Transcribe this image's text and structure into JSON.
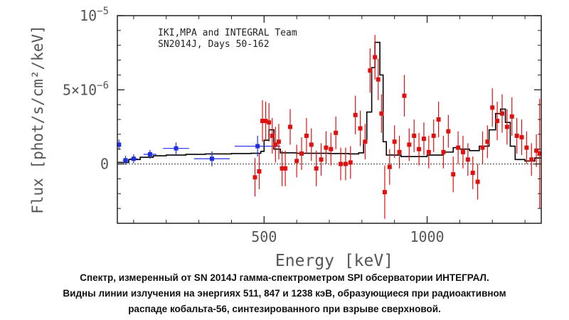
{
  "chart_data": {
    "type": "scatter",
    "title_lines": [
      "IKI,MPA and INTEGRAL Team",
      "SN2014J, Days 50-162"
    ],
    "xlabel": "Energy [keV]",
    "ylabel": "Flux [phot/s/cm²/keV]",
    "xlim": [
      50,
      1350
    ],
    "ylim": [
      -4.0,
      10.0
    ],
    "y_unit_exponent": -6,
    "x_ticks": [
      500,
      1000
    ],
    "x_tick_labels": [
      "500",
      "1000"
    ],
    "y_ticks": [
      0,
      5,
      10
    ],
    "y_tick_labels": [
      "0",
      "5×10",
      "10"
    ],
    "y_tick_superscripts": [
      "",
      "−6",
      "−5"
    ],
    "zero_line": true,
    "model": {
      "name": "model spectrum",
      "color": "#000000",
      "steps": [
        [
          50,
          0.1
        ],
        [
          85,
          0.3
        ],
        [
          120,
          0.45
        ],
        [
          160,
          0.55
        ],
        [
          200,
          0.6
        ],
        [
          260,
          0.65
        ],
        [
          320,
          0.68
        ],
        [
          400,
          0.7
        ],
        [
          460,
          0.72
        ],
        [
          490,
          0.85
        ],
        [
          500,
          1.6
        ],
        [
          515,
          2.3
        ],
        [
          530,
          1.0
        ],
        [
          550,
          0.75
        ],
        [
          600,
          0.72
        ],
        [
          700,
          0.7
        ],
        [
          760,
          0.68
        ],
        [
          790,
          0.75
        ],
        [
          805,
          1.5
        ],
        [
          815,
          3.5
        ],
        [
          830,
          6.5
        ],
        [
          840,
          8.2
        ],
        [
          855,
          6.0
        ],
        [
          865,
          1.5
        ],
        [
          875,
          0.6
        ],
        [
          920,
          0.5
        ],
        [
          1000,
          0.6
        ],
        [
          1050,
          0.8
        ],
        [
          1080,
          1.1
        ],
        [
          1100,
          1.0
        ],
        [
          1130,
          0.9
        ],
        [
          1160,
          1.2
        ],
        [
          1190,
          2.3
        ],
        [
          1210,
          3.4
        ],
        [
          1225,
          3.7
        ],
        [
          1240,
          2.8
        ],
        [
          1255,
          1.2
        ],
        [
          1270,
          0.3
        ],
        [
          1300,
          0.2
        ],
        [
          1330,
          0.4
        ],
        [
          1350,
          0.4
        ]
      ]
    },
    "series": [
      {
        "name": "low-energy data (blue)",
        "color": "#1f2ee0",
        "points": [
          {
            "x": 55,
            "y": 1.3,
            "xerr": 4,
            "yerr": 0.35
          },
          {
            "x": 75,
            "y": 0.25,
            "xerr": 8,
            "yerr": 0.3
          },
          {
            "x": 100,
            "y": 0.35,
            "xerr": 12,
            "yerr": 0.3
          },
          {
            "x": 150,
            "y": 0.65,
            "xerr": 20,
            "yerr": 0.3
          },
          {
            "x": 230,
            "y": 1.05,
            "xerr": 40,
            "yerr": 0.4
          },
          {
            "x": 340,
            "y": 0.35,
            "xerr": 55,
            "yerr": 0.5
          },
          {
            "x": 480,
            "y": 1.2,
            "xerr": 70,
            "yerr": 0.7
          }
        ]
      },
      {
        "name": "high-energy data (red)",
        "color": "#e01010",
        "points": [
          {
            "x": 472,
            "y": -0.9,
            "xerr": 3,
            "yerr": 1.3
          },
          {
            "x": 485,
            "y": -0.5,
            "xerr": 3,
            "yerr": 1.2
          },
          {
            "x": 495,
            "y": 2.9,
            "xerr": 3,
            "yerr": 1.4
          },
          {
            "x": 505,
            "y": 2.9,
            "xerr": 3,
            "yerr": 1.3
          },
          {
            "x": 515,
            "y": 2.8,
            "xerr": 3,
            "yerr": 1.3
          },
          {
            "x": 525,
            "y": 1.9,
            "xerr": 3,
            "yerr": 1.2
          },
          {
            "x": 535,
            "y": 1.3,
            "xerr": 3,
            "yerr": 1.2
          },
          {
            "x": 545,
            "y": 1.5,
            "xerr": 3,
            "yerr": 1.2
          },
          {
            "x": 555,
            "y": -0.3,
            "xerr": 3,
            "yerr": 1.2
          },
          {
            "x": 565,
            "y": -0.3,
            "xerr": 3,
            "yerr": 1.2
          },
          {
            "x": 580,
            "y": 2.5,
            "xerr": 3,
            "yerr": 1.2
          },
          {
            "x": 600,
            "y": 0.2,
            "xerr": 3,
            "yerr": 1.1
          },
          {
            "x": 615,
            "y": 0.7,
            "xerr": 3,
            "yerr": 1.1
          },
          {
            "x": 630,
            "y": 1.9,
            "xerr": 3,
            "yerr": 1.2
          },
          {
            "x": 645,
            "y": 1.3,
            "xerr": 3,
            "yerr": 1.1
          },
          {
            "x": 660,
            "y": -0.3,
            "xerr": 3,
            "yerr": 1.2
          },
          {
            "x": 675,
            "y": 0.3,
            "xerr": 3,
            "yerr": 1.1
          },
          {
            "x": 690,
            "y": 1.1,
            "xerr": 3,
            "yerr": 1.1
          },
          {
            "x": 705,
            "y": 1.0,
            "xerr": 3,
            "yerr": 1.1
          },
          {
            "x": 720,
            "y": 2.1,
            "xerr": 3,
            "yerr": 1.1
          },
          {
            "x": 735,
            "y": 0.0,
            "xerr": 3,
            "yerr": 1.1
          },
          {
            "x": 750,
            "y": 0.0,
            "xerr": 3,
            "yerr": 1.1
          },
          {
            "x": 765,
            "y": 0.1,
            "xerr": 3,
            "yerr": 1.1
          },
          {
            "x": 780,
            "y": 3.3,
            "xerr": 3,
            "yerr": 1.3
          },
          {
            "x": 795,
            "y": 2.4,
            "xerr": 3,
            "yerr": 1.2
          },
          {
            "x": 810,
            "y": 1.5,
            "xerr": 3,
            "yerr": 1.2
          },
          {
            "x": 825,
            "y": 6.3,
            "xerr": 3,
            "yerr": 1.5
          },
          {
            "x": 840,
            "y": 7.2,
            "xerr": 3,
            "yerr": 1.5
          },
          {
            "x": 850,
            "y": 5.7,
            "xerr": 3,
            "yerr": 1.4
          },
          {
            "x": 860,
            "y": 3.4,
            "xerr": 3,
            "yerr": 1.3
          },
          {
            "x": 870,
            "y": -1.9,
            "xerr": 3,
            "yerr": 1.8
          },
          {
            "x": 885,
            "y": -0.2,
            "xerr": 3,
            "yerr": 1.2
          },
          {
            "x": 900,
            "y": 1.5,
            "xerr": 3,
            "yerr": 1.1
          },
          {
            "x": 915,
            "y": 0.8,
            "xerr": 3,
            "yerr": 1.1
          },
          {
            "x": 930,
            "y": 4.6,
            "xerr": 3,
            "yerr": 1.4
          },
          {
            "x": 945,
            "y": 1.3,
            "xerr": 3,
            "yerr": 1.1
          },
          {
            "x": 960,
            "y": 1.9,
            "xerr": 3,
            "yerr": 1.1
          },
          {
            "x": 975,
            "y": 1.0,
            "xerr": 3,
            "yerr": 1.1
          },
          {
            "x": 990,
            "y": 1.7,
            "xerr": 3,
            "yerr": 1.1
          },
          {
            "x": 1005,
            "y": 0.8,
            "xerr": 3,
            "yerr": 1.1
          },
          {
            "x": 1020,
            "y": 1.9,
            "xerr": 3,
            "yerr": 1.1
          },
          {
            "x": 1035,
            "y": 3.0,
            "xerr": 3,
            "yerr": 1.2
          },
          {
            "x": 1050,
            "y": 0.8,
            "xerr": 3,
            "yerr": 1.1
          },
          {
            "x": 1065,
            "y": 2.2,
            "xerr": 3,
            "yerr": 1.1
          },
          {
            "x": 1080,
            "y": -0.7,
            "xerr": 3,
            "yerr": 1.2
          },
          {
            "x": 1095,
            "y": 1.1,
            "xerr": 3,
            "yerr": 1.1
          },
          {
            "x": 1110,
            "y": 0.8,
            "xerr": 3,
            "yerr": 1.1
          },
          {
            "x": 1125,
            "y": 0.3,
            "xerr": 3,
            "yerr": 1.1
          },
          {
            "x": 1140,
            "y": -0.6,
            "xerr": 3,
            "yerr": 1.1
          },
          {
            "x": 1155,
            "y": -1.2,
            "xerr": 3,
            "yerr": 1.2
          },
          {
            "x": 1170,
            "y": 1.1,
            "xerr": 3,
            "yerr": 1.1
          },
          {
            "x": 1185,
            "y": 1.5,
            "xerr": 3,
            "yerr": 1.1
          },
          {
            "x": 1200,
            "y": 3.8,
            "xerr": 3,
            "yerr": 1.3
          },
          {
            "x": 1215,
            "y": 2.9,
            "xerr": 3,
            "yerr": 1.3
          },
          {
            "x": 1230,
            "y": 3.4,
            "xerr": 3,
            "yerr": 1.3
          },
          {
            "x": 1245,
            "y": 2.5,
            "xerr": 3,
            "yerr": 1.2
          },
          {
            "x": 1260,
            "y": 3.2,
            "xerr": 3,
            "yerr": 1.3
          },
          {
            "x": 1275,
            "y": 1.9,
            "xerr": 3,
            "yerr": 1.2
          },
          {
            "x": 1290,
            "y": 1.8,
            "xerr": 3,
            "yerr": 1.2
          },
          {
            "x": 1305,
            "y": 1.1,
            "xerr": 3,
            "yerr": 1.1
          },
          {
            "x": 1320,
            "y": 0.3,
            "xerr": 3,
            "yerr": 1.1
          },
          {
            "x": 1335,
            "y": 0.9,
            "xerr": 3,
            "yerr": 1.1
          },
          {
            "x": 1345,
            "y": 0.7,
            "xerr": 3,
            "yerr": 3.7
          }
        ]
      }
    ]
  },
  "caption": {
    "line1": "Спектр, измеренный от SN 2014J гамма-спектрометром SPI обсерватории ИНТЕГРАЛ.",
    "line2": "Видны линии излучения на энергиях 511, 847 и 1238 кэВ, образующиеся при радиоактивном",
    "line3": "распаде кобальта-56, синтезированного при взрыве сверхновой."
  }
}
